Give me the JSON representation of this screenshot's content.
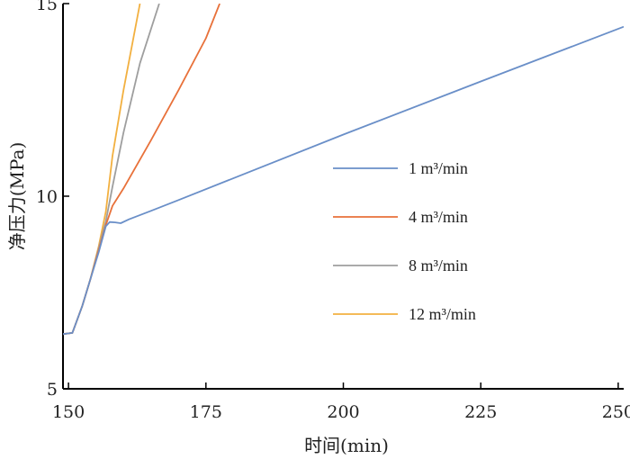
{
  "chart_data": {
    "type": "line",
    "xlabel": "时间(min)",
    "ylabel": "净压力(MPa)",
    "xlim": [
      149,
      251
    ],
    "ylim": [
      5,
      15
    ],
    "x_ticks": [
      150,
      175,
      200,
      225,
      250
    ],
    "y_ticks": [
      5,
      10,
      15
    ],
    "legend_position": "center-right",
    "grid": false,
    "series": [
      {
        "name": "1 m³/min",
        "color": "#6a8fc8",
        "points": [
          [
            149,
            6.42
          ],
          [
            150.7,
            6.45
          ],
          [
            152.5,
            7.15
          ],
          [
            154,
            7.85
          ],
          [
            155.5,
            8.55
          ],
          [
            156.8,
            9.22
          ],
          [
            157.5,
            9.33
          ],
          [
            158.5,
            9.32
          ],
          [
            159.5,
            9.3
          ],
          [
            161,
            9.4
          ],
          [
            165,
            9.62
          ],
          [
            170,
            9.9
          ],
          [
            200,
            11.6
          ],
          [
            225,
            12.98
          ],
          [
            251,
            14.4
          ]
        ]
      },
      {
        "name": "4 m³/min",
        "color": "#e8713a",
        "points": [
          [
            149,
            6.42
          ],
          [
            150.7,
            6.45
          ],
          [
            152.5,
            7.15
          ],
          [
            154,
            7.85
          ],
          [
            155.5,
            8.6
          ],
          [
            156.8,
            9.25
          ],
          [
            158,
            9.75
          ],
          [
            160,
            10.2
          ],
          [
            165,
            11.45
          ],
          [
            170,
            12.75
          ],
          [
            175,
            14.1
          ],
          [
            177.5,
            15.0
          ]
        ]
      },
      {
        "name": "8 m³/min",
        "color": "#9e9e9e",
        "points": [
          [
            149,
            6.42
          ],
          [
            150.7,
            6.45
          ],
          [
            152.5,
            7.15
          ],
          [
            154,
            7.85
          ],
          [
            155.5,
            8.65
          ],
          [
            156.8,
            9.35
          ],
          [
            158,
            10.25
          ],
          [
            160,
            11.65
          ],
          [
            163,
            13.45
          ],
          [
            166.5,
            15.0
          ]
        ]
      },
      {
        "name": "12 m³/min",
        "color": "#f2b040",
        "points": [
          [
            149,
            6.42
          ],
          [
            150.7,
            6.45
          ],
          [
            152.5,
            7.15
          ],
          [
            154,
            7.85
          ],
          [
            155.5,
            8.7
          ],
          [
            156.8,
            9.6
          ],
          [
            158,
            11.05
          ],
          [
            160,
            12.75
          ],
          [
            163,
            15.0
          ]
        ]
      }
    ]
  }
}
